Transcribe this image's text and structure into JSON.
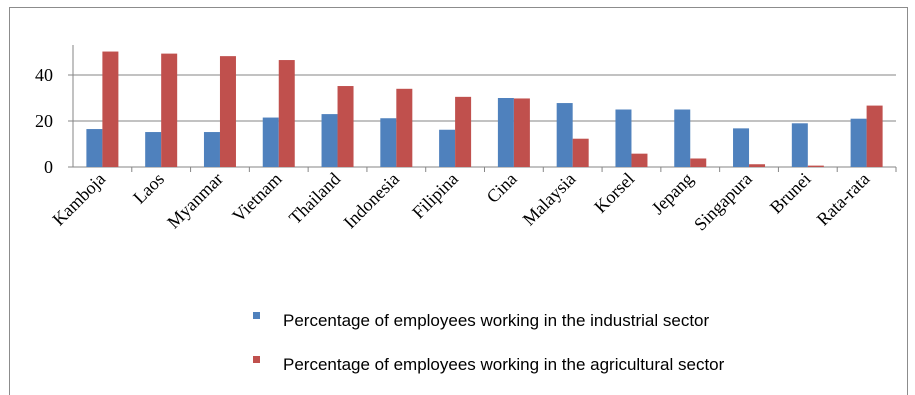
{
  "chart_data": {
    "type": "bar",
    "categories": [
      "Kamboja",
      "Laos",
      "Myanmar",
      "Vietnam",
      "Thailand",
      "Indonesia",
      "Filipina",
      "Cina",
      "Malaysia",
      "Korsel",
      "Jepang",
      "Singapura",
      "Brunei",
      "Rata-rata"
    ],
    "series": [
      {
        "name": "Percentage of employees working in the industrial sector",
        "color": "#4f81bd",
        "values": [
          16.5,
          15.2,
          15.2,
          21.5,
          23,
          21.2,
          16.2,
          30,
          27.8,
          25,
          25,
          16.8,
          19,
          21
        ]
      },
      {
        "name": "Percentage of employees working in the agricultural sector",
        "color": "#c0504d",
        "values": [
          50.2,
          49.3,
          48.2,
          46.5,
          35.2,
          34,
          30.5,
          29.8,
          12.3,
          5.8,
          3.7,
          1.2,
          0.6,
          26.7
        ]
      }
    ],
    "y_ticks": [
      "0",
      "20",
      "40"
    ],
    "ylim": [
      0,
      55
    ],
    "grid": true,
    "legend_position": "bottom"
  }
}
